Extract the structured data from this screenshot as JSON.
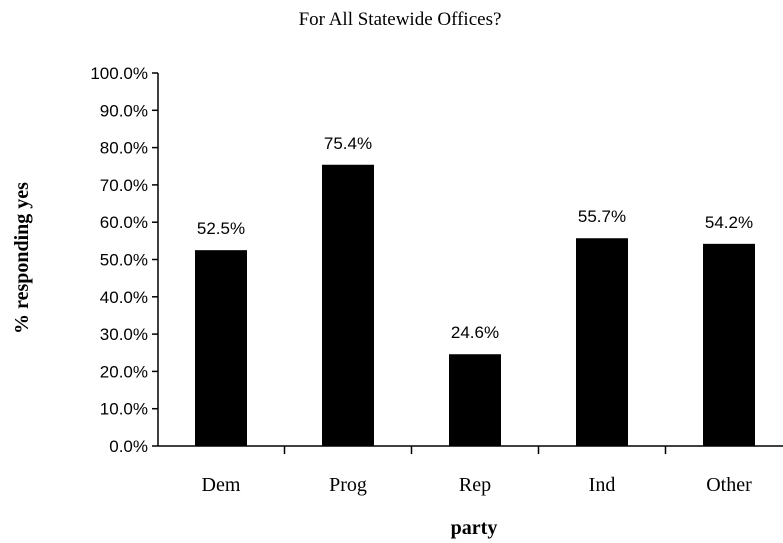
{
  "chart_data": {
    "type": "bar",
    "title": "For All Statewide Offices?",
    "xlabel": "party",
    "ylabel": "% responding yes",
    "categories": [
      "Dem",
      "Prog",
      "Rep",
      "Ind",
      "Other"
    ],
    "values": [
      52.5,
      75.4,
      24.6,
      55.7,
      54.2
    ],
    "data_labels": [
      "52.5%",
      "75.4%",
      "24.6%",
      "55.7%",
      "54.2%"
    ],
    "ylim": [
      0,
      100
    ],
    "yticks": [
      "0.0%",
      "10.0%",
      "20.0%",
      "30.0%",
      "40.0%",
      "50.0%",
      "60.0%",
      "70.0%",
      "80.0%",
      "90.0%",
      "100.0%"
    ],
    "grid": false,
    "legend": "none",
    "bar_color": "#000000"
  }
}
